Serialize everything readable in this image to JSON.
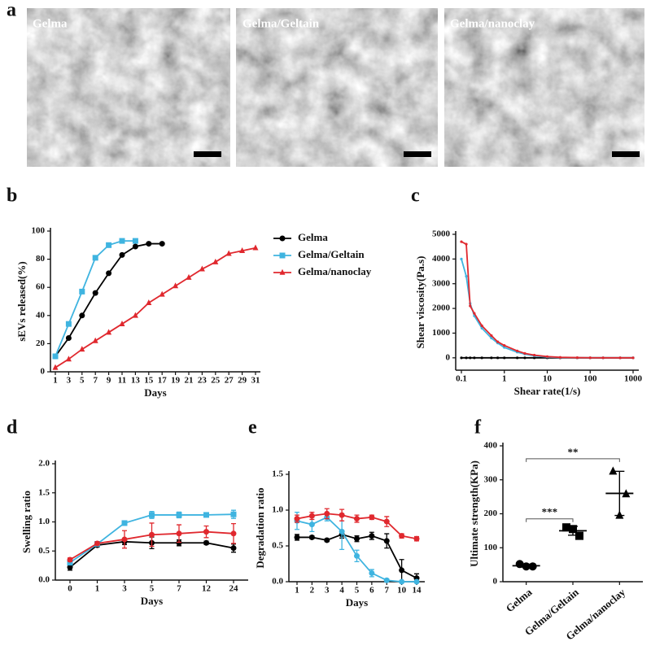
{
  "figure_a": {
    "label": "a",
    "images": [
      "Gelma",
      "Gelma/Geltain",
      "Gelma/nanoclay"
    ]
  },
  "chart_data": [
    {
      "type": "line",
      "panel_label": "b",
      "xlabel": "Days",
      "ylabel": "sEVs released(%)",
      "xlim": [
        1,
        31
      ],
      "xticks": [
        1,
        3,
        5,
        7,
        9,
        11,
        13,
        15,
        17,
        19,
        21,
        23,
        25,
        27,
        29,
        31
      ],
      "ylim": [
        0,
        100
      ],
      "yticks": [
        0,
        20,
        40,
        60,
        80,
        100
      ],
      "legend": "right",
      "series": [
        {
          "name": "Gelma",
          "color": "#000000",
          "marker": "circle",
          "x": [
            1,
            3,
            5,
            7,
            9,
            11,
            13,
            15,
            17
          ],
          "values": [
            11,
            24,
            40,
            56,
            70,
            83,
            89,
            91,
            91
          ]
        },
        {
          "name": "Gelma/Geltain",
          "color": "#3fb4e0",
          "marker": "square",
          "x": [
            1,
            3,
            5,
            7,
            9,
            11,
            13
          ],
          "values": [
            11,
            34,
            57,
            81,
            90,
            93,
            93
          ]
        },
        {
          "name": "Gelma/nanoclay",
          "color": "#e0282e",
          "marker": "triangle",
          "x": [
            1,
            3,
            5,
            7,
            9,
            11,
            13,
            15,
            17,
            19,
            21,
            23,
            25,
            27,
            29,
            31
          ],
          "values": [
            3,
            9,
            16,
            22,
            28,
            34,
            40,
            49,
            55,
            61,
            67,
            73,
            78,
            84,
            86,
            88
          ]
        }
      ]
    },
    {
      "type": "line",
      "panel_label": "c",
      "xlabel": "Shear rate(1/s)",
      "ylabel": "Shear viscosity(Pa.s)",
      "xscale": "log",
      "xlim": [
        0.1,
        1000
      ],
      "xticks": [
        0.1,
        1,
        10,
        100,
        1000
      ],
      "ylim": [
        -500,
        5000
      ],
      "yticks": [
        0,
        1000,
        2000,
        3000,
        4000,
        5000
      ],
      "x": [
        0.1,
        0.13,
        0.16,
        0.2,
        0.3,
        0.5,
        0.7,
        1,
        2,
        3,
        5,
        10,
        20,
        50,
        100,
        200,
        500,
        1000
      ],
      "series": [
        {
          "color": "#000000",
          "marker": "dot",
          "values": [
            0,
            0,
            0,
            0,
            0,
            0,
            0,
            0,
            0,
            0,
            0,
            0,
            0,
            0,
            0,
            0,
            0,
            0
          ]
        },
        {
          "color": "#3fb4e0",
          "marker": "dot",
          "values": [
            4000,
            3300,
            2200,
            1700,
            1200,
            800,
            600,
            420,
            230,
            150,
            80,
            30,
            10,
            3,
            1,
            0,
            0,
            0
          ]
        },
        {
          "color": "#e0282e",
          "marker": "dot",
          "values": [
            4700,
            4600,
            2100,
            1800,
            1300,
            900,
            650,
            500,
            280,
            180,
            110,
            50,
            20,
            8,
            3,
            1,
            0,
            0
          ]
        }
      ]
    },
    {
      "type": "line",
      "panel_label": "d",
      "xlabel": "Days",
      "ylabel": "Swelling ratio",
      "categories": [
        "0",
        "1",
        "3",
        "5",
        "7",
        "12",
        "24"
      ],
      "ylim": [
        0,
        2
      ],
      "yticks": [
        {
          "value": 0,
          "label": "0.0"
        },
        {
          "value": 0.5,
          "label": "0.5"
        },
        {
          "value": 1,
          "label": "1.0"
        },
        {
          "value": 1.5,
          "label": "1.5"
        },
        {
          "value": 2,
          "label": "2.0"
        }
      ],
      "series": [
        {
          "color": "#000000",
          "marker": "circle",
          "values": [
            0.22,
            0.6,
            0.66,
            0.64,
            0.64,
            0.64,
            0.55
          ],
          "errors": [
            0.05,
            0.03,
            0.05,
            0.1,
            0.05,
            0.03,
            0.07
          ]
        },
        {
          "color": "#3fb4e0",
          "marker": "square",
          "values": [
            0.3,
            0.62,
            0.98,
            1.12,
            1.12,
            1.12,
            1.13
          ],
          "errors": [
            0.03,
            0.03,
            0.02,
            0.06,
            0.05,
            0.02,
            0.07
          ]
        },
        {
          "color": "#e0282e",
          "marker": "circle",
          "values": [
            0.35,
            0.63,
            0.7,
            0.78,
            0.8,
            0.83,
            0.8
          ],
          "errors": [
            0.03,
            0.03,
            0.15,
            0.2,
            0.15,
            0.1,
            0.17
          ]
        }
      ]
    },
    {
      "type": "line",
      "panel_label": "e",
      "xlabel": "Days",
      "ylabel": "Degradation ratio",
      "categories": [
        "1",
        "2",
        "3",
        "4",
        "5",
        "6",
        "7",
        "10",
        "14"
      ],
      "ylim": [
        0,
        1.5
      ],
      "yticks": [
        {
          "value": 0,
          "label": "0.0"
        },
        {
          "value": 0.5,
          "label": "0.5"
        },
        {
          "value": 1,
          "label": "1.0"
        },
        1.5
      ],
      "series": [
        {
          "color": "#000000",
          "marker": "circle",
          "values": [
            0.62,
            0.62,
            0.58,
            0.66,
            0.6,
            0.64,
            0.57,
            0.16,
            0.05
          ],
          "errors": [
            0.04,
            0.02,
            0.02,
            0.05,
            0.04,
            0.05,
            0.1,
            0.15,
            0.06
          ]
        },
        {
          "color": "#3fb4e0",
          "marker": "circle",
          "values": [
            0.85,
            0.8,
            0.9,
            0.7,
            0.36,
            0.12,
            0.02,
            0,
            0
          ],
          "errors": [
            0.12,
            0.1,
            0.05,
            0.25,
            0.08,
            0.05,
            0.02,
            0,
            0
          ]
        },
        {
          "color": "#e0282e",
          "marker": "circle",
          "values": [
            0.88,
            0.92,
            0.95,
            0.93,
            0.88,
            0.9,
            0.84,
            0.64,
            0.6
          ],
          "errors": [
            0.05,
            0.05,
            0.07,
            0.08,
            0.05,
            0.03,
            0.07,
            0.03,
            0.03
          ]
        }
      ]
    },
    {
      "type": "scatter",
      "panel_label": "f",
      "ylabel": "Ultimate strength(KPa)",
      "categories": [
        "Gelma",
        "Gelma/Geltain",
        "Gelma/nanoclay"
      ],
      "markers": [
        "circle",
        "square",
        "triangle"
      ],
      "color": "#000000",
      "points": [
        [
          52,
          45,
          45
        ],
        [
          160,
          155,
          135
        ],
        [
          325,
          195,
          258
        ]
      ],
      "means": [
        47,
        150,
        260
      ],
      "sds": [
        4,
        13,
        65
      ],
      "ylim": [
        0,
        400
      ],
      "yticks": [
        0,
        100,
        200,
        300,
        400
      ],
      "annotations": [
        {
          "text": "***",
          "from": 0,
          "to": 1,
          "y": 185
        },
        {
          "text": "**",
          "from": 0,
          "to": 2,
          "y": 362
        }
      ]
    }
  ]
}
